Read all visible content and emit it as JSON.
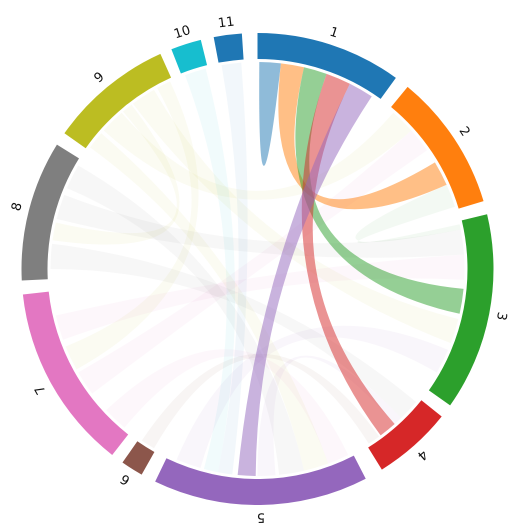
{
  "chart_data": {
    "type": "chord",
    "groups": [
      {
        "name": "1",
        "color": "#1f77b4",
        "start_deg": 0.0,
        "end_deg": 35.9
      },
      {
        "name": "2",
        "color": "#ff7f0e",
        "start_deg": 39.5,
        "end_deg": 73.3
      },
      {
        "name": "3",
        "color": "#2ca02c",
        "start_deg": 76.6,
        "end_deg": 125.3
      },
      {
        "name": "4",
        "color": "#d62728",
        "start_deg": 128.7,
        "end_deg": 148.2
      },
      {
        "name": "5",
        "color": "#9467bd",
        "start_deg": 152.7,
        "end_deg": 205.7
      },
      {
        "name": "6",
        "color": "#8c564b",
        "start_deg": 209.4,
        "end_deg": 214.9
      },
      {
        "name": "7",
        "color": "#e377c2",
        "start_deg": 218.0,
        "end_deg": 263.8
      },
      {
        "name": "8",
        "color": "#7f7f7f",
        "start_deg": 267.2,
        "end_deg": 301.8
      },
      {
        "name": "9",
        "color": "#bcbd22",
        "start_deg": 305.1,
        "end_deg": 335.7
      },
      {
        "name": "10",
        "color": "#17becf",
        "start_deg": 338.6,
        "end_deg": 346.1
      },
      {
        "name": "11",
        "color": "#1f77b4",
        "start_deg": 349.3,
        "end_deg": 356.2
      }
    ],
    "highlighted_group": "1",
    "chords": [
      {
        "source": "1",
        "target": "1",
        "s0": 0.5,
        "s1": 6.5,
        "t0": 0.5,
        "t1": 6.5,
        "color": "#1f77b4"
      },
      {
        "source": "1",
        "target": "2",
        "s0": 6.5,
        "s1": 13.0,
        "t0": 59.0,
        "t1": 66.0,
        "color": "#ff7f0e"
      },
      {
        "source": "1",
        "target": "3",
        "s0": 13.0,
        "s1": 19.5,
        "t0": 95.5,
        "t1": 102.5,
        "color": "#2ca02c"
      },
      {
        "source": "1",
        "target": "4",
        "s0": 19.5,
        "s1": 26.5,
        "t0": 138.5,
        "t1": 143.5,
        "color": "#d62728"
      },
      {
        "source": "1",
        "target": "5",
        "s0": 26.5,
        "s1": 33.5,
        "t0": 180.5,
        "t1": 185.5,
        "color": "#9467bd"
      },
      {
        "source": "2",
        "target": "9",
        "s0": 41.0,
        "s1": 48.0,
        "t0": 312.0,
        "t1": 319.0,
        "color": "#bcbd22"
      },
      {
        "source": "2",
        "target": "7",
        "s0": 48.0,
        "s1": 55.0,
        "t0": 233.0,
        "t1": 240.0,
        "color": "#e377c2"
      },
      {
        "source": "3",
        "target": "8",
        "s0": 79.0,
        "s1": 86.0,
        "t0": 284.0,
        "t1": 291.0,
        "color": "#7f7f7f"
      },
      {
        "source": "3",
        "target": "7",
        "s0": 86.0,
        "s1": 93.0,
        "t0": 250.0,
        "t1": 257.0,
        "color": "#e377c2"
      },
      {
        "source": "3",
        "target": "9",
        "s0": 104.0,
        "s1": 111.0,
        "t0": 323.0,
        "t1": 330.0,
        "color": "#bcbd22"
      },
      {
        "source": "3",
        "target": "5",
        "s0": 113.0,
        "s1": 120.0,
        "t0": 196.0,
        "t1": 203.0,
        "color": "#9467bd"
      },
      {
        "source": "4",
        "target": "8",
        "s0": 130.0,
        "s1": 136.0,
        "t0": 270.0,
        "t1": 277.0,
        "color": "#7f7f7f"
      },
      {
        "source": "4",
        "target": "6",
        "s0": 144.0,
        "s1": 147.5,
        "t0": 210.0,
        "t1": 214.0,
        "color": "#8c564b"
      },
      {
        "source": "5",
        "target": "7",
        "s0": 154.0,
        "s1": 160.0,
        "t0": 220.0,
        "t1": 227.0,
        "color": "#e377c2"
      },
      {
        "source": "5",
        "target": "9",
        "s0": 160.0,
        "s1": 167.0,
        "t0": 306.0,
        "t1": 311.0,
        "color": "#bcbd22"
      },
      {
        "source": "5",
        "target": "8",
        "s0": 167.0,
        "s1": 174.0,
        "t0": 293.0,
        "t1": 300.0,
        "color": "#7f7f7f"
      },
      {
        "source": "5",
        "target": "11",
        "s0": 187.0,
        "s1": 191.0,
        "t0": 350.0,
        "t1": 355.5,
        "color": "#1f77b4"
      },
      {
        "source": "5",
        "target": "10",
        "s0": 191.0,
        "s1": 195.0,
        "t0": 339.5,
        "t1": 345.5,
        "color": "#17becf"
      },
      {
        "source": "7",
        "target": "9",
        "s0": 241.0,
        "s1": 248.0,
        "t0": 331.0,
        "t1": 335.0,
        "color": "#bcbd22"
      },
      {
        "source": "8",
        "target": "9",
        "s0": 278.0,
        "s1": 283.0,
        "t0": 319.5,
        "t1": 322.5,
        "color": "#bcbd22"
      },
      {
        "source": "2",
        "target": "3",
        "s0": 66.0,
        "s1": 72.5,
        "t0": 77.5,
        "t1": 79.0,
        "color": "#2ca02c"
      },
      {
        "source": "4",
        "target": "5",
        "s0": 136.0,
        "s1": 138.5,
        "t0": 175.0,
        "t1": 180.0,
        "color": "#9467bd"
      }
    ]
  }
}
